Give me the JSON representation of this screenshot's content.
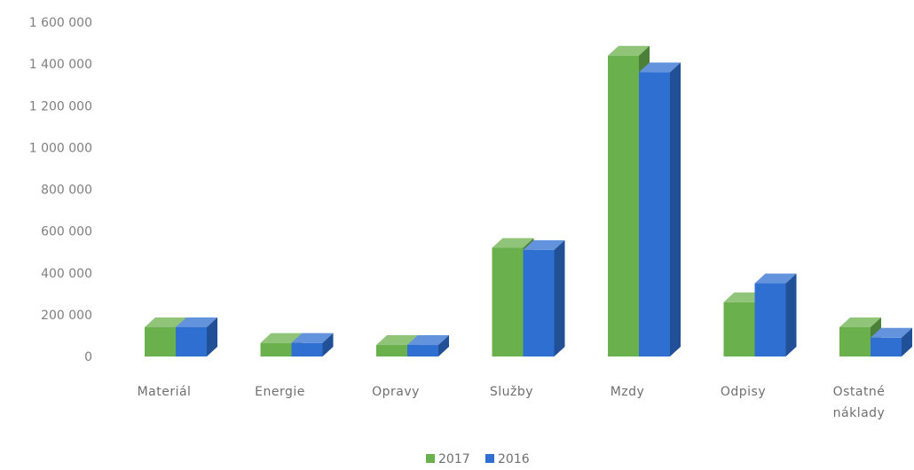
{
  "chart_data": {
    "type": "bar",
    "categories": [
      [
        "Materiál"
      ],
      [
        "Energie"
      ],
      [
        "Opravy"
      ],
      [
        "Služby"
      ],
      [
        "Mzdy"
      ],
      [
        "Odpisy"
      ],
      [
        "Ostatné",
        "náklady"
      ]
    ],
    "series": [
      {
        "name": "2017",
        "color": "#6ab04c",
        "values": [
          140000,
          65000,
          55000,
          520000,
          1440000,
          260000,
          140000
        ]
      },
      {
        "name": "2016",
        "color": "#2f6fd1",
        "values": [
          140000,
          65000,
          55000,
          510000,
          1360000,
          350000,
          90000
        ]
      }
    ],
    "ylim": [
      0,
      1600000
    ],
    "yticks": [
      0,
      200000,
      400000,
      600000,
      800000,
      1000000,
      1200000,
      1400000,
      1600000
    ],
    "ytick_labels": [
      "0",
      "200 000",
      "400 000",
      "600 000",
      "800 000",
      "1 000 000",
      "1 200 000",
      "1 400 000",
      "1 600 000"
    ],
    "grid": false,
    "legend_position": "bottom",
    "style": "3d-clustered-column"
  }
}
